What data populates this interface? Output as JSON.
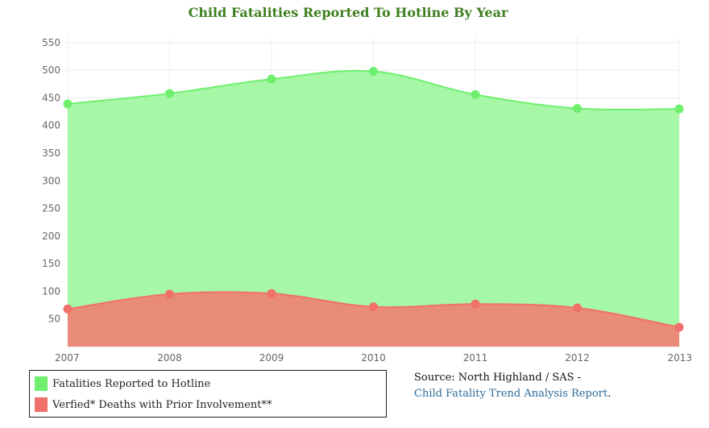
{
  "chart_data": {
    "type": "area",
    "title": "Child Fatalities Reported To Hotline By Year",
    "categories": [
      "2007",
      "2008",
      "2009",
      "2010",
      "2011",
      "2012",
      "2013"
    ],
    "y_ticks": [
      50,
      100,
      150,
      200,
      250,
      300,
      350,
      400,
      450,
      500,
      550
    ],
    "ylim": [
      0,
      560
    ],
    "grid": true,
    "legend_placement": "bottom-left",
    "series": [
      {
        "name": "Fatalities Reported to Hotline",
        "values": [
          439,
          458,
          484,
          498,
          456,
          431,
          430
        ],
        "color": "#6ef06e",
        "fill": "#a6f7a6"
      },
      {
        "name": "Verfied* Deaths with Prior Involvement**",
        "values": [
          68,
          95,
          96,
          72,
          77,
          70,
          35
        ],
        "color": "#f0706a",
        "fill": "#e98b79"
      }
    ]
  },
  "source": {
    "text": "Source: North Highland / SAS -",
    "link_label": "Child Fatality Trend Analysis Report",
    "suffix": "."
  }
}
